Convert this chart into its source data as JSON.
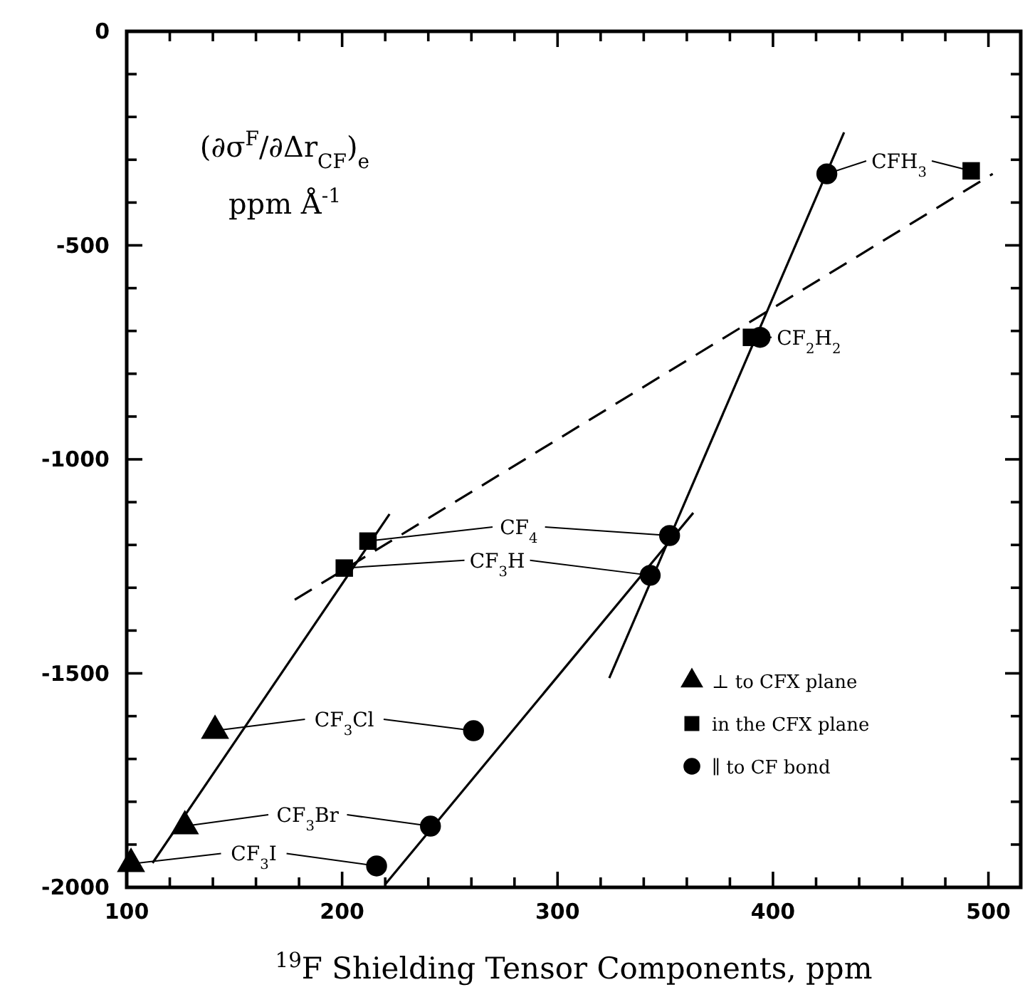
{
  "chart_data": {
    "type": "scatter",
    "xlabel": "$^{19}$F Shielding Tensor Components, ppm",
    "xlim": [
      100,
      515
    ],
    "ylim": [
      -2000,
      0
    ],
    "xticks": [
      100,
      {
        "value": 120,
        "label": null
      },
      {
        "value": 140,
        "label": null
      },
      {
        "value": 160,
        "label": null
      },
      {
        "value": 180,
        "label": null
      },
      200,
      {
        "value": 220,
        "label": null
      },
      {
        "value": 240,
        "label": null
      },
      {
        "value": 260,
        "label": null
      },
      {
        "value": 280,
        "label": null
      },
      300,
      {
        "value": 320,
        "label": null
      },
      {
        "value": 340,
        "label": null
      },
      {
        "value": 360,
        "label": null
      },
      {
        "value": 380,
        "label": null
      },
      400,
      {
        "value": 420,
        "label": null
      },
      {
        "value": 440,
        "label": null
      },
      {
        "value": 460,
        "label": null
      },
      {
        "value": 480,
        "label": null
      },
      500
    ],
    "yticks": [
      0,
      {
        "value": -100,
        "label": null
      },
      {
        "value": -200,
        "label": null
      },
      {
        "value": -300,
        "label": null
      },
      {
        "value": -400,
        "label": null
      },
      -500,
      {
        "value": -600,
        "label": null
      },
      {
        "value": -700,
        "label": null
      },
      {
        "value": -800,
        "label": null
      },
      {
        "value": -900,
        "label": null
      },
      -1000,
      {
        "value": -1100,
        "label": null
      },
      {
        "value": -1200,
        "label": null
      },
      {
        "value": -1300,
        "label": null
      },
      {
        "value": -1400,
        "label": null
      },
      -1500,
      {
        "value": -1600,
        "label": null
      },
      {
        "value": -1700,
        "label": null
      },
      {
        "value": -1800,
        "label": null
      },
      {
        "value": -1900,
        "label": null
      },
      -2000
    ],
    "grid": false,
    "legend": "right",
    "series": [
      {
        "name": "⊥ to CFX plane",
        "marker": "triangle",
        "color": "#000000",
        "x": [
          102,
          127,
          141,
          null,
          null,
          null,
          null
        ],
        "values": [
          -1945,
          -1857,
          -1634,
          null,
          null,
          null,
          null
        ]
      },
      {
        "name": "in the CFX plane",
        "marker": "square",
        "color": "#000000",
        "x": [
          null,
          null,
          null,
          201,
          212,
          390,
          492
        ],
        "values": [
          null,
          null,
          null,
          -1254,
          -1191,
          -715,
          -326
        ]
      },
      {
        "name": "∥ to CF bond",
        "marker": "circle",
        "color": "#000000",
        "x": [
          216,
          241,
          261,
          343,
          352,
          394,
          425
        ],
        "values": [
          -1950,
          -1857,
          -1634,
          -1271,
          -1178,
          -715,
          -333
        ]
      },
      {
        "type": "line",
        "line_style": "solid",
        "color": "#000000",
        "x": [
          112,
          222
        ],
        "values": [
          -1943,
          -1128
        ]
      },
      {
        "type": "line",
        "line_style": "solid",
        "color": "#000000",
        "x": [
          220,
          363
        ],
        "values": [
          -1993,
          -1125
        ]
      },
      {
        "type": "line",
        "line_style": "solid",
        "color": "#000000",
        "x": [
          324,
          433
        ],
        "values": [
          -1511,
          -236
        ]
      },
      {
        "type": "line",
        "line_style": "dashed",
        "color": "#000000",
        "x": [
          178,
          502
        ],
        "values": [
          -1328,
          -333
        ]
      }
    ],
    "annotations": [
      {
        "text": "CF$_{3}$I",
        "x": 216,
        "y": -1950
      },
      {
        "text": "CF$_{3}$Br",
        "x": 241,
        "y": -1857
      },
      {
        "text": "CF$_{3}$Cl",
        "x": 261,
        "y": -1634
      },
      {
        "text": "CF$_{3}$H",
        "x": 343,
        "y": -1271
      },
      {
        "text": "CF$_{4}$",
        "x": 352,
        "y": -1178
      },
      {
        "text": "CF$_{2}$H$_{2}$",
        "x": 394,
        "y": -715
      },
      {
        "text": "CFH$_{3}$",
        "x": 425,
        "y": -333
      },
      "(∂σ$^{F}$/∂Δr$_{CF}$)$_{e}$",
      "ppm Å$^{-1}$"
    ]
  }
}
